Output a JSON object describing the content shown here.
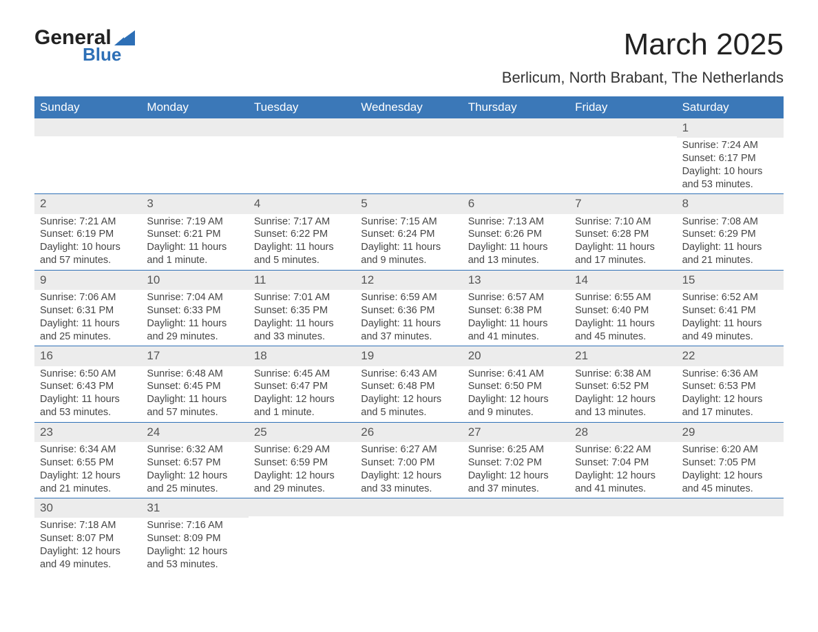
{
  "logo": {
    "text_general": "General",
    "text_blue": "Blue"
  },
  "title": "March 2025",
  "location": "Berlicum, North Brabant, The Netherlands",
  "colors": {
    "header_bg": "#3b78b8",
    "header_text": "#ffffff",
    "daynum_bg": "#ececec",
    "accent": "#2d6fb6",
    "body_text": "#454545"
  },
  "weekdays": [
    "Sunday",
    "Monday",
    "Tuesday",
    "Wednesday",
    "Thursday",
    "Friday",
    "Saturday"
  ],
  "weeks": [
    [
      {
        "n": "",
        "sr": "",
        "ss": "",
        "d1": "",
        "d2": ""
      },
      {
        "n": "",
        "sr": "",
        "ss": "",
        "d1": "",
        "d2": ""
      },
      {
        "n": "",
        "sr": "",
        "ss": "",
        "d1": "",
        "d2": ""
      },
      {
        "n": "",
        "sr": "",
        "ss": "",
        "d1": "",
        "d2": ""
      },
      {
        "n": "",
        "sr": "",
        "ss": "",
        "d1": "",
        "d2": ""
      },
      {
        "n": "",
        "sr": "",
        "ss": "",
        "d1": "",
        "d2": ""
      },
      {
        "n": "1",
        "sr": "Sunrise: 7:24 AM",
        "ss": "Sunset: 6:17 PM",
        "d1": "Daylight: 10 hours",
        "d2": "and 53 minutes."
      }
    ],
    [
      {
        "n": "2",
        "sr": "Sunrise: 7:21 AM",
        "ss": "Sunset: 6:19 PM",
        "d1": "Daylight: 10 hours",
        "d2": "and 57 minutes."
      },
      {
        "n": "3",
        "sr": "Sunrise: 7:19 AM",
        "ss": "Sunset: 6:21 PM",
        "d1": "Daylight: 11 hours",
        "d2": "and 1 minute."
      },
      {
        "n": "4",
        "sr": "Sunrise: 7:17 AM",
        "ss": "Sunset: 6:22 PM",
        "d1": "Daylight: 11 hours",
        "d2": "and 5 minutes."
      },
      {
        "n": "5",
        "sr": "Sunrise: 7:15 AM",
        "ss": "Sunset: 6:24 PM",
        "d1": "Daylight: 11 hours",
        "d2": "and 9 minutes."
      },
      {
        "n": "6",
        "sr": "Sunrise: 7:13 AM",
        "ss": "Sunset: 6:26 PM",
        "d1": "Daylight: 11 hours",
        "d2": "and 13 minutes."
      },
      {
        "n": "7",
        "sr": "Sunrise: 7:10 AM",
        "ss": "Sunset: 6:28 PM",
        "d1": "Daylight: 11 hours",
        "d2": "and 17 minutes."
      },
      {
        "n": "8",
        "sr": "Sunrise: 7:08 AM",
        "ss": "Sunset: 6:29 PM",
        "d1": "Daylight: 11 hours",
        "d2": "and 21 minutes."
      }
    ],
    [
      {
        "n": "9",
        "sr": "Sunrise: 7:06 AM",
        "ss": "Sunset: 6:31 PM",
        "d1": "Daylight: 11 hours",
        "d2": "and 25 minutes."
      },
      {
        "n": "10",
        "sr": "Sunrise: 7:04 AM",
        "ss": "Sunset: 6:33 PM",
        "d1": "Daylight: 11 hours",
        "d2": "and 29 minutes."
      },
      {
        "n": "11",
        "sr": "Sunrise: 7:01 AM",
        "ss": "Sunset: 6:35 PM",
        "d1": "Daylight: 11 hours",
        "d2": "and 33 minutes."
      },
      {
        "n": "12",
        "sr": "Sunrise: 6:59 AM",
        "ss": "Sunset: 6:36 PM",
        "d1": "Daylight: 11 hours",
        "d2": "and 37 minutes."
      },
      {
        "n": "13",
        "sr": "Sunrise: 6:57 AM",
        "ss": "Sunset: 6:38 PM",
        "d1": "Daylight: 11 hours",
        "d2": "and 41 minutes."
      },
      {
        "n": "14",
        "sr": "Sunrise: 6:55 AM",
        "ss": "Sunset: 6:40 PM",
        "d1": "Daylight: 11 hours",
        "d2": "and 45 minutes."
      },
      {
        "n": "15",
        "sr": "Sunrise: 6:52 AM",
        "ss": "Sunset: 6:41 PM",
        "d1": "Daylight: 11 hours",
        "d2": "and 49 minutes."
      }
    ],
    [
      {
        "n": "16",
        "sr": "Sunrise: 6:50 AM",
        "ss": "Sunset: 6:43 PM",
        "d1": "Daylight: 11 hours",
        "d2": "and 53 minutes."
      },
      {
        "n": "17",
        "sr": "Sunrise: 6:48 AM",
        "ss": "Sunset: 6:45 PM",
        "d1": "Daylight: 11 hours",
        "d2": "and 57 minutes."
      },
      {
        "n": "18",
        "sr": "Sunrise: 6:45 AM",
        "ss": "Sunset: 6:47 PM",
        "d1": "Daylight: 12 hours",
        "d2": "and 1 minute."
      },
      {
        "n": "19",
        "sr": "Sunrise: 6:43 AM",
        "ss": "Sunset: 6:48 PM",
        "d1": "Daylight: 12 hours",
        "d2": "and 5 minutes."
      },
      {
        "n": "20",
        "sr": "Sunrise: 6:41 AM",
        "ss": "Sunset: 6:50 PM",
        "d1": "Daylight: 12 hours",
        "d2": "and 9 minutes."
      },
      {
        "n": "21",
        "sr": "Sunrise: 6:38 AM",
        "ss": "Sunset: 6:52 PM",
        "d1": "Daylight: 12 hours",
        "d2": "and 13 minutes."
      },
      {
        "n": "22",
        "sr": "Sunrise: 6:36 AM",
        "ss": "Sunset: 6:53 PM",
        "d1": "Daylight: 12 hours",
        "d2": "and 17 minutes."
      }
    ],
    [
      {
        "n": "23",
        "sr": "Sunrise: 6:34 AM",
        "ss": "Sunset: 6:55 PM",
        "d1": "Daylight: 12 hours",
        "d2": "and 21 minutes."
      },
      {
        "n": "24",
        "sr": "Sunrise: 6:32 AM",
        "ss": "Sunset: 6:57 PM",
        "d1": "Daylight: 12 hours",
        "d2": "and 25 minutes."
      },
      {
        "n": "25",
        "sr": "Sunrise: 6:29 AM",
        "ss": "Sunset: 6:59 PM",
        "d1": "Daylight: 12 hours",
        "d2": "and 29 minutes."
      },
      {
        "n": "26",
        "sr": "Sunrise: 6:27 AM",
        "ss": "Sunset: 7:00 PM",
        "d1": "Daylight: 12 hours",
        "d2": "and 33 minutes."
      },
      {
        "n": "27",
        "sr": "Sunrise: 6:25 AM",
        "ss": "Sunset: 7:02 PM",
        "d1": "Daylight: 12 hours",
        "d2": "and 37 minutes."
      },
      {
        "n": "28",
        "sr": "Sunrise: 6:22 AM",
        "ss": "Sunset: 7:04 PM",
        "d1": "Daylight: 12 hours",
        "d2": "and 41 minutes."
      },
      {
        "n": "29",
        "sr": "Sunrise: 6:20 AM",
        "ss": "Sunset: 7:05 PM",
        "d1": "Daylight: 12 hours",
        "d2": "and 45 minutes."
      }
    ],
    [
      {
        "n": "30",
        "sr": "Sunrise: 7:18 AM",
        "ss": "Sunset: 8:07 PM",
        "d1": "Daylight: 12 hours",
        "d2": "and 49 minutes."
      },
      {
        "n": "31",
        "sr": "Sunrise: 7:16 AM",
        "ss": "Sunset: 8:09 PM",
        "d1": "Daylight: 12 hours",
        "d2": "and 53 minutes."
      },
      {
        "n": "",
        "sr": "",
        "ss": "",
        "d1": "",
        "d2": ""
      },
      {
        "n": "",
        "sr": "",
        "ss": "",
        "d1": "",
        "d2": ""
      },
      {
        "n": "",
        "sr": "",
        "ss": "",
        "d1": "",
        "d2": ""
      },
      {
        "n": "",
        "sr": "",
        "ss": "",
        "d1": "",
        "d2": ""
      },
      {
        "n": "",
        "sr": "",
        "ss": "",
        "d1": "",
        "d2": ""
      }
    ]
  ]
}
